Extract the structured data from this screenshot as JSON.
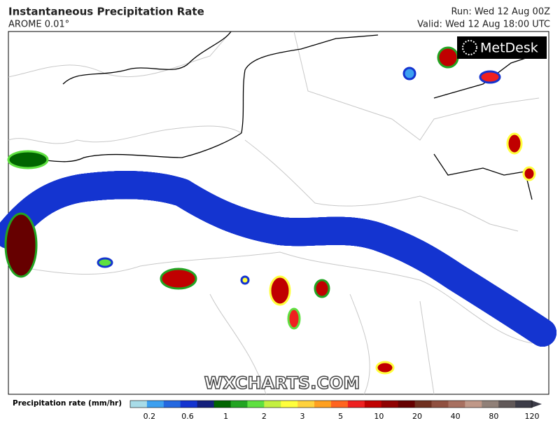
{
  "header": {
    "title": "Instantaneous Precipitation Rate",
    "model": "AROME 0.01°",
    "run": "Run: Wed 12 Aug 00Z",
    "valid": "Valid: Wed 12 Aug 18:00 UTC"
  },
  "logo": "MetDesk",
  "watermark": "WXCHARTS.COM",
  "legend": {
    "label": "Precipitation rate (mm/hr)",
    "ticks": [
      "0.2",
      "0.6",
      "1",
      "2",
      "3",
      "5",
      "10",
      "20",
      "40",
      "80",
      "120"
    ],
    "colors": [
      "#a8dce8",
      "#3ca0f0",
      "#2468e0",
      "#1434d0",
      "#14207c",
      "#006400",
      "#22a422",
      "#5ee040",
      "#c4f040",
      "#ffff3c",
      "#ffd23c",
      "#ffa020",
      "#ff6420",
      "#ee2020",
      "#c00000",
      "#900000",
      "#660000",
      "#703020",
      "#905040",
      "#a87060",
      "#c09888",
      "#908078",
      "#605858",
      "#3c3c48"
    ]
  }
}
